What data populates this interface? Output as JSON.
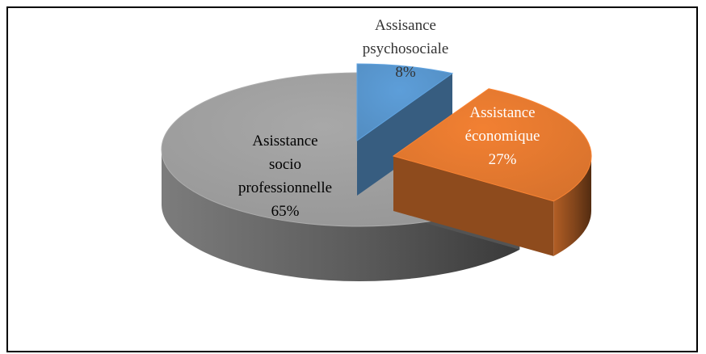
{
  "chart_data": {
    "type": "pie",
    "style": "3d-exploded",
    "title": "",
    "slices": [
      {
        "name": "Assisance psychosociale",
        "label_lines": [
          "Assisance",
          "psychosociale",
          "8%"
        ],
        "value": 8,
        "color": "#5b9bd5",
        "label_color": "#333333"
      },
      {
        "name": "Assistance économique",
        "label_lines": [
          "Assistance",
          "économique",
          "27%"
        ],
        "value": 27,
        "color": "#ed7d31",
        "label_color": "#ffffff"
      },
      {
        "name": "Asisstance socio professionnelle",
        "label_lines": [
          "Asisstance",
          "socio",
          "professionnelle",
          "65%"
        ],
        "value": 65,
        "color": "#a5a5a5",
        "label_color": "#000000"
      }
    ],
    "legend": "none"
  }
}
